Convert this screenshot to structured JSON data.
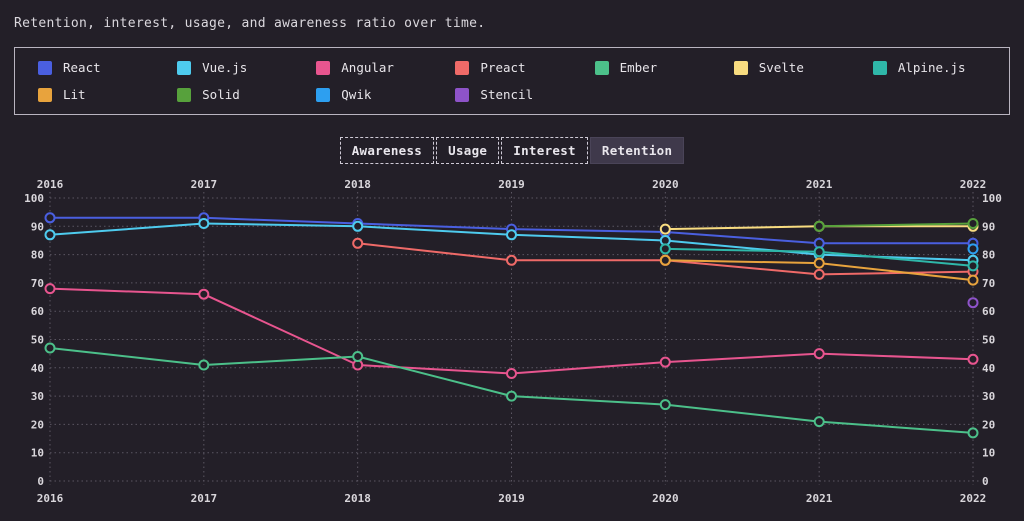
{
  "title": "Retention, interest, usage, and awareness ratio over time.",
  "tabs": [
    {
      "label": "Awareness",
      "active": false
    },
    {
      "label": "Usage",
      "active": false
    },
    {
      "label": "Interest",
      "active": false
    },
    {
      "label": "Retention",
      "active": true
    }
  ],
  "colors": {
    "background": "#231f28",
    "panel_border": "#b9b4c0",
    "text": "#e3e0e6",
    "grid": "#5b5662",
    "active_tab_bg": "#3f394b"
  },
  "chart_data": {
    "type": "line",
    "title": "Retention, interest, usage, and awareness ratio over time.",
    "x_labels": [
      "2016",
      "2017",
      "2018",
      "2019",
      "2020",
      "2021",
      "2022"
    ],
    "y_ticks": [
      0,
      10,
      20,
      30,
      40,
      50,
      60,
      70,
      80,
      90,
      100
    ],
    "ylim": [
      0,
      100
    ],
    "grid": "dotted",
    "axis_tick_labels": "top, bottom, left and right",
    "legend_position": "top",
    "series": [
      {
        "name": "React",
        "color": "#4a5fe0",
        "values": [
          93,
          93,
          91,
          89,
          88,
          84,
          84
        ]
      },
      {
        "name": "Vue.js",
        "color": "#4ecbee",
        "values": [
          87,
          91,
          90,
          87,
          85,
          80,
          78
        ]
      },
      {
        "name": "Angular",
        "color": "#e8558f",
        "values": [
          68,
          66,
          41,
          38,
          42,
          45,
          43
        ]
      },
      {
        "name": "Preact",
        "color": "#ef6a68",
        "values": [
          null,
          null,
          84,
          78,
          78,
          73,
          74
        ]
      },
      {
        "name": "Ember",
        "color": "#4cc08a",
        "values": [
          47,
          41,
          44,
          30,
          27,
          21,
          17
        ]
      },
      {
        "name": "Svelte",
        "color": "#f8dc80",
        "values": [
          null,
          null,
          null,
          null,
          89,
          90,
          90
        ]
      },
      {
        "name": "Alpine.js",
        "color": "#2fb7a9",
        "values": [
          null,
          null,
          null,
          null,
          82,
          81,
          76
        ]
      },
      {
        "name": "Lit",
        "color": "#e8a33d",
        "values": [
          null,
          null,
          null,
          null,
          78,
          77,
          71
        ]
      },
      {
        "name": "Solid",
        "color": "#57a13c",
        "values": [
          null,
          null,
          null,
          null,
          null,
          90,
          91
        ]
      },
      {
        "name": "Qwik",
        "color": "#2d9ff0",
        "values": [
          null,
          null,
          null,
          null,
          null,
          null,
          82
        ]
      },
      {
        "name": "Stencil",
        "color": "#8e53c9",
        "values": [
          null,
          null,
          null,
          null,
          null,
          null,
          63
        ]
      }
    ]
  }
}
